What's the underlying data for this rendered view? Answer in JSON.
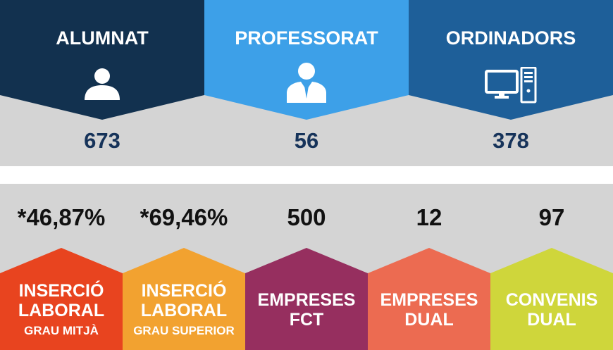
{
  "top": {
    "cards": [
      {
        "title": "ALUMNAT",
        "value": "673",
        "icon": "person-icon",
        "color": "#12314f"
      },
      {
        "title": "PROFESSORAT",
        "value": "56",
        "icon": "person-tie-icon",
        "color": "#3da0e8"
      },
      {
        "title": "ORDINADORS",
        "value": "378",
        "icon": "computer-icon",
        "color": "#1e5f99"
      }
    ],
    "band_color": "#d4d4d4"
  },
  "bottom": {
    "band_color": "#d4d4d4",
    "cards": [
      {
        "value": "*46,87%",
        "line1": "INSERCIÓ",
        "line2": "LABORAL",
        "sub": "GRAU MITJÀ",
        "color": "#e8441f"
      },
      {
        "value": "*69,46%",
        "line1": "INSERCIÓ",
        "line2": "LABORAL",
        "sub": "GRAU SUPERIOR",
        "color": "#f2a230"
      },
      {
        "value": "500",
        "line1": "EMPRESES",
        "line2": "FCT",
        "color": "#962f5f"
      },
      {
        "value": "12",
        "line1": "EMPRESES",
        "line2": "DUAL",
        "color": "#ec6b51"
      },
      {
        "value": "97",
        "line1": "CONVENIS",
        "line2": "DUAL",
        "color": "#cfd63b"
      }
    ]
  }
}
